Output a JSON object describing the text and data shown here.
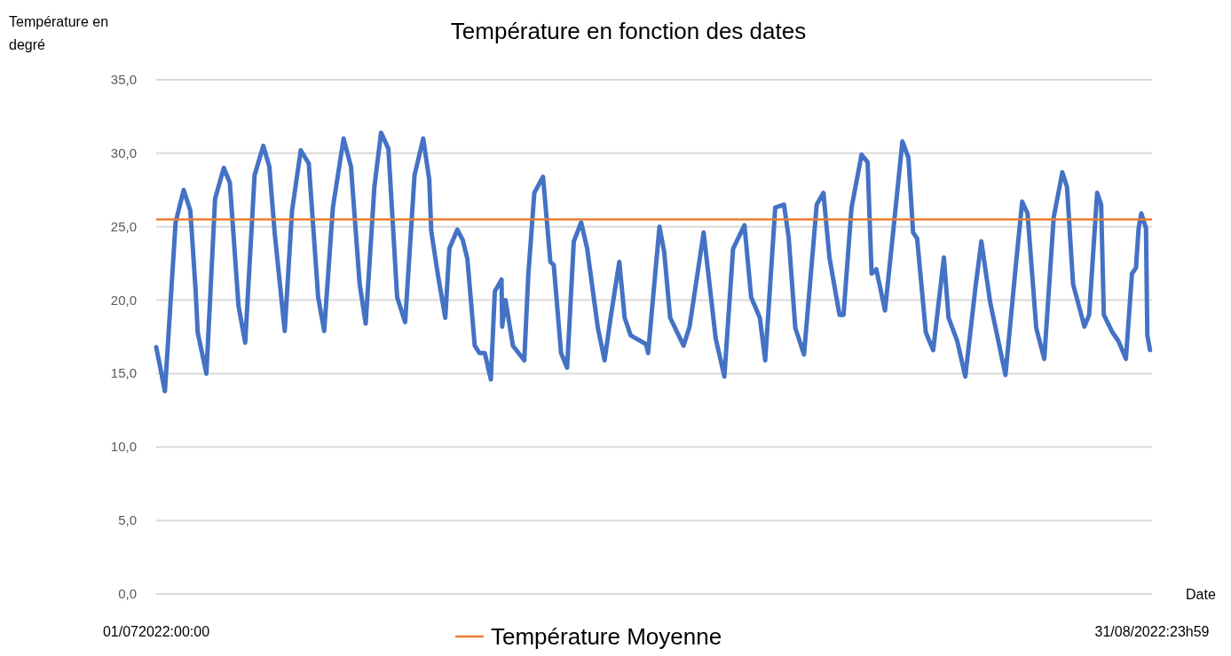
{
  "chart_data": {
    "type": "line",
    "title": "Température en fonction des dates",
    "xlabel": "Date",
    "ylabel": "Température en degré",
    "x": [
      "2022-07-01T00:00",
      "2022-07-01T13:00",
      "2022-07-02T05:00",
      "2022-07-02T17:00",
      "2022-07-03T03:00",
      "2022-07-03T11:00",
      "2022-07-03T14:00",
      "2022-07-04T03:00",
      "2022-07-04T16:00",
      "2022-07-05T05:00",
      "2022-07-05T14:00",
      "2022-07-06T03:00",
      "2022-07-06T13:00",
      "2022-07-07T03:00",
      "2022-07-07T16:00",
      "2022-07-08T01:00",
      "2022-07-08T09:00",
      "2022-07-09T00:00",
      "2022-07-09T11:00",
      "2022-07-10T00:00",
      "2022-07-10T12:00",
      "2022-07-11T02:00",
      "2022-07-11T11:00",
      "2022-07-12T00:00",
      "2022-07-12T16:00",
      "2022-07-13T03:00",
      "2022-07-13T16:00",
      "2022-07-14T01:00",
      "2022-07-14T14:00",
      "2022-07-15T00:00",
      "2022-07-15T11:00",
      "2022-07-16T00:00",
      "2022-07-16T12:00",
      "2022-07-17T02:00",
      "2022-07-17T15:00",
      "2022-07-18T00:00",
      "2022-07-18T03:00",
      "2022-07-18T13:00",
      "2022-07-19T00:00",
      "2022-07-19T06:00",
      "2022-07-19T18:00",
      "2022-07-20T02:00",
      "2022-07-20T09:00",
      "2022-07-20T20:00",
      "2022-07-21T03:00",
      "2022-07-21T11:00",
      "2022-07-21T20:00",
      "2022-07-22T02:00",
      "2022-07-22T12:00",
      "2022-07-22T13:00",
      "2022-07-22T18:00",
      "2022-07-23T05:00",
      "2022-07-23T22:00",
      "2022-07-24T04:00",
      "2022-07-24T13:00",
      "2022-07-25T02:00",
      "2022-07-25T13:00",
      "2022-07-25T18:00",
      "2022-07-26T05:00",
      "2022-07-26T14:00",
      "2022-07-27T00:00",
      "2022-07-27T11:00",
      "2022-07-27T20:00",
      "2022-07-28T12:00",
      "2022-07-28T22:00",
      "2022-07-29T07:00",
      "2022-07-29T20:00",
      "2022-07-30T04:00",
      "2022-07-30T13:00",
      "2022-07-31T12:00",
      "2022-07-31T15:00",
      "2022-08-01T08:00",
      "2022-08-01T15:00",
      "2022-08-02T00:00",
      "2022-08-02T20:00",
      "2022-08-03T05:00",
      "2022-08-04T02:00",
      "2022-08-04T20:00",
      "2022-08-05T09:00",
      "2022-08-05T22:00",
      "2022-08-06T15:00",
      "2022-08-07T01:00",
      "2022-08-07T14:00",
      "2022-08-07T22:00",
      "2022-08-08T13:00",
      "2022-08-09T02:00",
      "2022-08-09T09:00",
      "2022-08-09T19:00",
      "2022-08-10T08:00",
      "2022-08-11T03:00",
      "2022-08-11T13:00",
      "2022-08-11T22:00",
      "2022-08-12T13:00",
      "2022-08-12T19:00",
      "2022-08-13T07:00",
      "2022-08-13T22:00",
      "2022-08-14T07:00",
      "2022-08-14T13:00",
      "2022-08-14T20:00",
      "2022-08-15T09:00",
      "2022-08-15T22:00",
      "2022-08-16T11:00",
      "2022-08-16T20:00",
      "2022-08-17T03:00",
      "2022-08-17T09:00",
      "2022-08-17T22:00",
      "2022-08-18T09:00",
      "2022-08-19T01:00",
      "2022-08-19T08:00",
      "2022-08-19T21:00",
      "2022-08-20T09:00",
      "2022-08-21T00:00",
      "2022-08-21T09:00",
      "2022-08-21T22:00",
      "2022-08-22T21:00",
      "2022-08-23T13:00",
      "2022-08-23T22:00",
      "2022-08-24T06:00",
      "2022-08-24T19:00",
      "2022-08-25T07:00",
      "2022-08-25T21:00",
      "2022-08-26T10:00",
      "2022-08-26T17:00",
      "2022-08-27T02:00",
      "2022-08-27T19:00",
      "2022-08-28T02:00",
      "2022-08-28T14:00",
      "2022-08-28T20:00",
      "2022-08-29T00:00",
      "2022-08-29T13:00",
      "2022-08-29T22:00",
      "2022-08-30T09:00",
      "2022-08-30T18:00",
      "2022-08-31T00:00",
      "2022-08-31T04:00",
      "2022-08-31T08:00",
      "2022-08-31T15:00",
      "2022-08-31T17:00",
      "2022-08-31T21:00"
    ],
    "series": [
      {
        "color": "#4472c4",
        "values": [
          16.8,
          13.8,
          25.3,
          27.5,
          26.1,
          20.6,
          17.8,
          15.0,
          26.9,
          29.0,
          28.0,
          19.6,
          17.1,
          28.5,
          30.5,
          29.1,
          24.6,
          17.9,
          26.1,
          30.2,
          29.3,
          20.2,
          17.9,
          26.3,
          31.0,
          29.1,
          21.1,
          18.4,
          27.7,
          31.4,
          30.3,
          20.2,
          18.5,
          28.5,
          31.0,
          28.2,
          24.7,
          21.7,
          18.8,
          23.5,
          24.8,
          24.1,
          22.8,
          16.9,
          16.4,
          16.4,
          14.6,
          20.6,
          21.4,
          18.2,
          20.0,
          16.9,
          15.9,
          21.7,
          27.3,
          28.4,
          22.6,
          22.4,
          16.4,
          15.4,
          24.0,
          25.3,
          23.5,
          18.1,
          15.9,
          18.8,
          22.6,
          18.8,
          17.6,
          17.0,
          16.4,
          25.0,
          23.3,
          18.8,
          16.9,
          18.2,
          24.6,
          17.4,
          14.8,
          23.5,
          25.1,
          20.2,
          18.8,
          15.9,
          26.3,
          26.5,
          24.3,
          18.1,
          16.3,
          26.5,
          27.3,
          22.9,
          19.0,
          19.0,
          26.3,
          29.9,
          29.4,
          21.8,
          22.1,
          19.3,
          25.0,
          30.8,
          29.7,
          24.6,
          24.2,
          17.8,
          16.6,
          22.9,
          18.8,
          17.2,
          14.8,
          20.8,
          24.0,
          19.9,
          14.9,
          22.6,
          26.7,
          25.9,
          18.1,
          16.0,
          25.6,
          28.7,
          27.7,
          21.1,
          18.2,
          19.0,
          27.3,
          26.5,
          19.0,
          17.8,
          17.2,
          16.0,
          21.8,
          22.2,
          24.9,
          25.9,
          24.9,
          17.6,
          16.6
        ]
      }
    ],
    "xlim": [
      "2022-07-01T00:00",
      "2022-08-31T23:59"
    ],
    "xticks": [
      {
        "value": "2022-07-01T00:00",
        "label": "01/072022:00:00"
      },
      {
        "value": "2022-08-31T23:59",
        "label": "31/08/2022:23h59"
      }
    ],
    "ylim": [
      0,
      35
    ],
    "yticks": [
      {
        "value": 0,
        "label": "0,0"
      },
      {
        "value": 5,
        "label": "5,0"
      },
      {
        "value": 10,
        "label": "10,0"
      },
      {
        "value": 15,
        "label": "15,0"
      },
      {
        "value": 20,
        "label": "20,0"
      },
      {
        "value": 25,
        "label": "25,0"
      },
      {
        "value": 30,
        "label": "30,0"
      },
      {
        "value": 35,
        "label": "35,0"
      }
    ],
    "grid": "y",
    "line_style": "solid",
    "legend": "bottom",
    "ref_lines": [
      {
        "axis": "y",
        "value": 25.5,
        "label": "Température Moyenne",
        "color": "#ed7d31"
      }
    ]
  }
}
